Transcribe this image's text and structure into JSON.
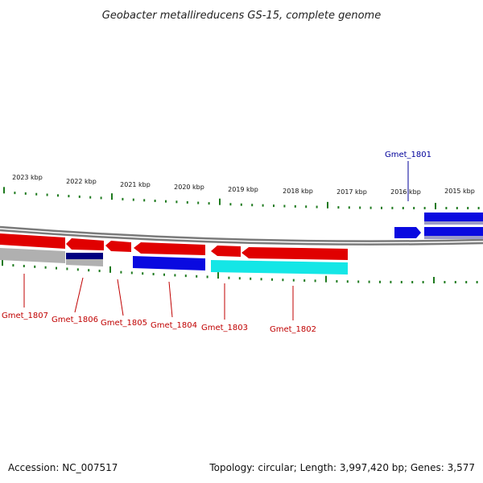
{
  "title": "Geobacter metallireducens GS-15, complete genome",
  "colors": {
    "background": "#ffffff",
    "backbone": "#7a7a7a",
    "tick": "#1e7a1e",
    "forward_gene": "#e00000",
    "reverse_gene": "#0a0ae0",
    "cyan_gene": "#14e6e6",
    "grey_gene": "#b0b0b0",
    "navy_gene": "#000080",
    "label_red": "#c00000",
    "label_blue": "#00009a"
  },
  "ruler": {
    "labels": [
      "2023 kbp",
      "2022 kbp",
      "2021 kbp",
      "2020 kbp",
      "2019 kbp",
      "2018 kbp",
      "2017 kbp",
      "2016 kbp",
      "2015 kbp"
    ]
  },
  "gene_labels": [
    {
      "name": "Gmet_1801",
      "color": "blue"
    },
    {
      "name": "Gmet_1802",
      "color": "red"
    },
    {
      "name": "Gmet_1803",
      "color": "red"
    },
    {
      "name": "Gmet_1804",
      "color": "red"
    },
    {
      "name": "Gmet_1805",
      "color": "red"
    },
    {
      "name": "Gmet_1806",
      "color": "red"
    },
    {
      "name": "Gmet_1807",
      "color": "red"
    }
  ],
  "footer": {
    "accession": "Accession: NC_007517",
    "summary": "Topology: circular; Length: 3,997,420 bp; Genes: 3,577"
  }
}
